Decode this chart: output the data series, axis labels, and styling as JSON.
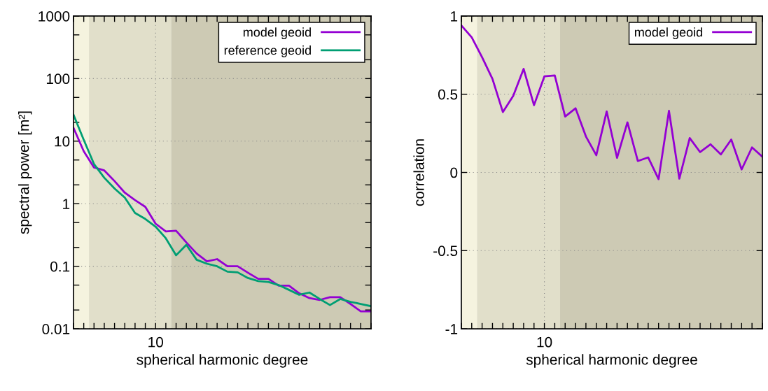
{
  "chart_data": [
    {
      "type": "line",
      "xlabel": "spherical harmonic degree",
      "ylabel": "spectral power [m²]",
      "log": "y",
      "grid": true,
      "legend": "top right",
      "categories": [
        null,
        null,
        null,
        null,
        null,
        null,
        null,
        null,
        "10",
        null,
        null,
        null,
        null,
        null,
        null,
        null,
        null,
        null,
        null,
        null,
        null,
        null,
        null,
        null,
        null,
        null,
        null,
        null,
        null,
        null
      ],
      "ylim": [
        0.01,
        1000
      ],
      "yticks": [
        0.01,
        {
          "value": 0.02,
          "label": null
        },
        {
          "value": 0.05,
          "label": null
        },
        0.1,
        {
          "value": 0.2,
          "label": null
        },
        {
          "value": 0.5,
          "label": null
        },
        1,
        {
          "value": 2,
          "label": null
        },
        {
          "value": 5,
          "label": null
        },
        10,
        {
          "value": 20,
          "label": null
        },
        {
          "value": 50,
          "label": null
        },
        100,
        {
          "value": 200,
          "label": null
        },
        {
          "value": 500,
          "label": null
        },
        1000
      ],
      "series": [
        {
          "name": "model geoid",
          "color": "#9400d3",
          "values": [
            16.3,
            6.9,
            3.8,
            3.4,
            2.3,
            1.5,
            1.14,
            0.89,
            0.48,
            0.36,
            0.37,
            0.24,
            0.16,
            0.12,
            0.13,
            0.1,
            0.1,
            0.079,
            0.063,
            0.063,
            0.049,
            0.049,
            0.037,
            0.031,
            0.029,
            0.032,
            0.032,
            0.025,
            0.019,
            0.019
          ]
        },
        {
          "name": "reference geoid",
          "color": "#009e73",
          "values": [
            26.4,
            10.5,
            4.3,
            2.6,
            1.75,
            1.25,
            0.71,
            0.57,
            0.43,
            0.28,
            0.15,
            0.22,
            0.127,
            0.11,
            0.1,
            0.082,
            0.08,
            0.065,
            0.058,
            0.056,
            0.05,
            0.042,
            0.035,
            0.038,
            0.03,
            0.024,
            0.03,
            0.027,
            0.025,
            0.023
          ]
        }
      ]
    },
    {
      "type": "line",
      "xlabel": "spherical harmonic degree",
      "ylabel": "correlation",
      "grid": true,
      "legend": "top right",
      "categories": [
        null,
        null,
        null,
        null,
        null,
        null,
        null,
        null,
        "10",
        null,
        null,
        null,
        null,
        null,
        null,
        null,
        null,
        null,
        null,
        null,
        null,
        null,
        null,
        null,
        null,
        null,
        null,
        null,
        null,
        null
      ],
      "ylim": [
        -1,
        1
      ],
      "yticks": [
        -1,
        -0.5,
        0,
        0.5,
        1
      ],
      "series": [
        {
          "name": "model geoid",
          "color": "#9400d3",
          "values": [
            0.94,
            0.864,
            0.736,
            0.598,
            0.386,
            0.49,
            0.662,
            0.43,
            0.614,
            0.62,
            0.357,
            0.41,
            0.23,
            0.11,
            0.39,
            0.093,
            0.32,
            0.073,
            0.096,
            -0.043,
            0.394,
            -0.04,
            0.22,
            0.13,
            0.18,
            0.115,
            0.21,
            0.019,
            0.16,
            0.1
          ]
        }
      ]
    }
  ]
}
